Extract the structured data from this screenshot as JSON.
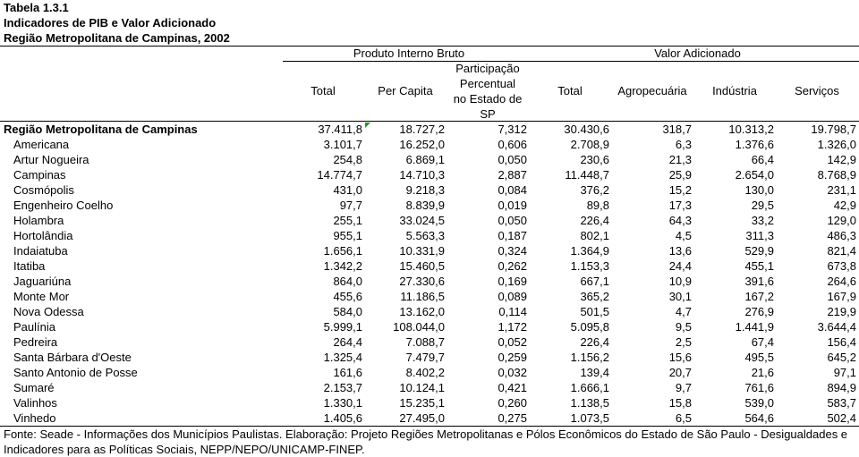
{
  "title": {
    "table_number": "Tabela 1.3.1",
    "heading": "Indicadores de PIB e Valor Adicionado",
    "subheading": "Região Metropolitana de Campinas, 2002"
  },
  "table": {
    "group_headers": {
      "pib": "Produto Interno Bruto",
      "valor_adicionado": "Valor Adicionado"
    },
    "columns": [
      "Total",
      "Per Capita",
      "Participação\nPercentual\nno Estado de\nSP",
      "Total",
      "Agropecuária",
      "Indústria",
      "Serviços"
    ],
    "summary_row": {
      "name": "Região Metropolitana de Campinas",
      "values": [
        "37.411,8",
        "18.727,2",
        "7,312",
        "30.430,6",
        "318,7",
        "10.313,2",
        "19.798,7"
      ]
    },
    "rows": [
      {
        "name": "Americana",
        "values": [
          "3.101,7",
          "16.252,0",
          "0,606",
          "2.708,9",
          "6,3",
          "1.376,6",
          "1.326,0"
        ]
      },
      {
        "name": "Artur Nogueira",
        "values": [
          "254,8",
          "6.869,1",
          "0,050",
          "230,6",
          "21,3",
          "66,4",
          "142,9"
        ]
      },
      {
        "name": "Campinas",
        "values": [
          "14.774,7",
          "14.710,3",
          "2,887",
          "11.448,7",
          "25,9",
          "2.654,0",
          "8.768,9"
        ]
      },
      {
        "name": "Cosmópolis",
        "values": [
          "431,0",
          "9.218,3",
          "0,084",
          "376,2",
          "15,2",
          "130,0",
          "231,1"
        ]
      },
      {
        "name": "Engenheiro Coelho",
        "values": [
          "97,7",
          "8.839,9",
          "0,019",
          "89,8",
          "17,3",
          "29,5",
          "42,9"
        ]
      },
      {
        "name": "Holambra",
        "values": [
          "255,1",
          "33.024,5",
          "0,050",
          "226,4",
          "64,3",
          "33,2",
          "129,0"
        ]
      },
      {
        "name": "Hortolândia",
        "values": [
          "955,1",
          "5.563,3",
          "0,187",
          "802,1",
          "4,5",
          "311,3",
          "486,3"
        ]
      },
      {
        "name": "Indaiatuba",
        "values": [
          "1.656,1",
          "10.331,9",
          "0,324",
          "1.364,9",
          "13,6",
          "529,9",
          "821,4"
        ]
      },
      {
        "name": "Itatiba",
        "values": [
          "1.342,2",
          "15.460,5",
          "0,262",
          "1.153,3",
          "24,4",
          "455,1",
          "673,8"
        ]
      },
      {
        "name": "Jaguariúna",
        "values": [
          "864,0",
          "27.330,6",
          "0,169",
          "667,1",
          "10,9",
          "391,6",
          "264,6"
        ]
      },
      {
        "name": "Monte Mor",
        "values": [
          "455,6",
          "11.186,5",
          "0,089",
          "365,2",
          "30,1",
          "167,2",
          "167,9"
        ]
      },
      {
        "name": "Nova Odessa",
        "values": [
          "584,0",
          "13.162,0",
          "0,114",
          "501,5",
          "4,7",
          "276,9",
          "219,9"
        ]
      },
      {
        "name": "Paulínia",
        "values": [
          "5.999,1",
          "108.044,0",
          "1,172",
          "5.095,8",
          "9,5",
          "1.441,9",
          "3.644,4"
        ]
      },
      {
        "name": "Pedreira",
        "values": [
          "264,4",
          "7.088,7",
          "0,052",
          "226,4",
          "2,5",
          "67,4",
          "156,4"
        ]
      },
      {
        "name": "Santa Bárbara d'Oeste",
        "values": [
          "1.325,4",
          "7.479,7",
          "0,259",
          "1.156,2",
          "15,6",
          "495,5",
          "645,2"
        ]
      },
      {
        "name": "Santo Antonio de Posse",
        "values": [
          "161,6",
          "8.402,2",
          "0,032",
          "139,4",
          "20,7",
          "21,6",
          "97,1"
        ]
      },
      {
        "name": "Sumaré",
        "values": [
          "2.153,7",
          "10.124,1",
          "0,421",
          "1.666,1",
          "9,7",
          "761,6",
          "894,9"
        ]
      },
      {
        "name": "Valinhos",
        "values": [
          "1.330,1",
          "15.235,1",
          "0,260",
          "1.138,5",
          "15,8",
          "539,0",
          "583,7"
        ]
      },
      {
        "name": "Vinhedo",
        "values": [
          "1.405,6",
          "27.495,0",
          "0,275",
          "1.073,5",
          "6,5",
          "564,6",
          "502,4"
        ]
      }
    ]
  },
  "source_note": "Fonte: Seade - Informações dos Municípios Paulistas. Elaboração: Projeto Regiões Metropolitanas e Pólos Econômicos do Estado de São Paulo - Desigualdades e\nIndicadores para as Políticas Sociais, NEPP/NEPO/UNICAMP-FINEP.",
  "icons": {
    "cell_error_indicator": {
      "name": "cell-error-indicator-icon",
      "color": "#1b9b1b"
    }
  }
}
